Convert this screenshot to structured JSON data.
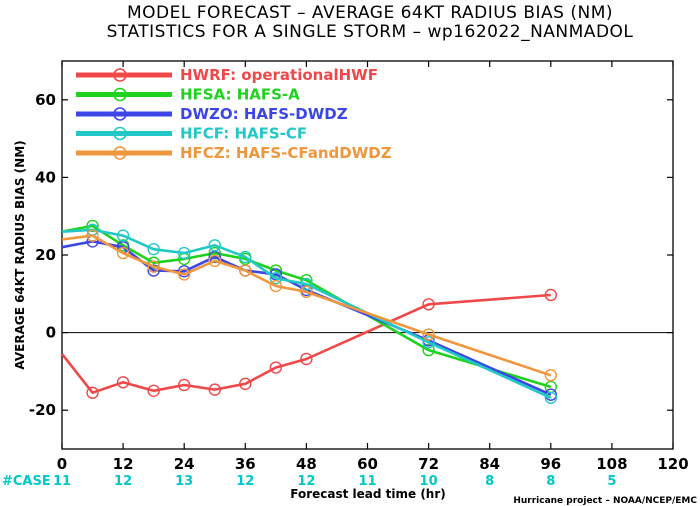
{
  "title": "MODEL FORECAST – AVERAGE 64KT RADIUS BIAS (NM)",
  "subtitle": "STATISTICS FOR A SINGLE STORM – wp162022_NANMADOL",
  "credit": "Hurricane project – NOAA/NCEP/EMC",
  "case_label": "#CASE",
  "case_color": "#00c8c8",
  "chart_data": {
    "type": "line",
    "title": "MODEL FORECAST – AVERAGE 64KT RADIUS BIAS (NM)",
    "subtitle": "STATISTICS FOR A SINGLE STORM – wp162022_NANMADOL",
    "xlabel": "Forecast lead time (hr)",
    "ylabel": "AVERAGE 64KT RADIUS BIAS (NM)",
    "xlim": [
      0,
      120
    ],
    "ylim": [
      -30,
      70
    ],
    "xticks": [
      0,
      12,
      24,
      36,
      48,
      60,
      72,
      84,
      96,
      108,
      120
    ],
    "yticks": [
      -20,
      0,
      20,
      40,
      60
    ],
    "zero_line": true,
    "grid": false,
    "legend_position": "top-left",
    "case_counts": [
      {
        "x": 0,
        "n": 11
      },
      {
        "x": 12,
        "n": 12
      },
      {
        "x": 24,
        "n": 13
      },
      {
        "x": 36,
        "n": 12
      },
      {
        "x": 48,
        "n": 12
      },
      {
        "x": 60,
        "n": 11
      },
      {
        "x": 72,
        "n": 10
      },
      {
        "x": 84,
        "n": 8
      },
      {
        "x": 96,
        "n": 8
      },
      {
        "x": 108,
        "n": 5
      }
    ],
    "series": [
      {
        "name": "HWRF: operationalHWF",
        "color": "#f04848",
        "x": [
          0,
          6,
          12,
          18,
          24,
          30,
          36,
          42,
          48,
          72,
          96
        ],
        "y": [
          -5.5,
          -15.5,
          -12.8,
          -15,
          -13.5,
          -14.7,
          -13.2,
          -9,
          -6.8,
          7.3,
          9.7
        ],
        "markers": [
          6,
          12,
          18,
          24,
          30,
          36,
          42,
          48,
          72,
          96
        ]
      },
      {
        "name": "HFSA: HAFS-A",
        "color": "#1ed21e",
        "x": [
          0,
          6,
          12,
          18,
          24,
          30,
          36,
          42,
          48,
          72,
          96
        ],
        "y": [
          26,
          27.5,
          22.5,
          18,
          19,
          20.5,
          19,
          16,
          13.5,
          -4.5,
          -14
        ],
        "markers": [
          6,
          12,
          18,
          24,
          30,
          36,
          42,
          48,
          72,
          96
        ]
      },
      {
        "name": "DWZO: HAFS-DWDZ",
        "color": "#3c46e6",
        "x": [
          0,
          6,
          12,
          18,
          24,
          30,
          36,
          42,
          48,
          72,
          96
        ],
        "y": [
          22,
          23.5,
          22,
          16,
          15.8,
          19.5,
          16,
          15,
          11,
          -2,
          -16
        ],
        "markers": [
          6,
          12,
          18,
          24,
          30,
          36,
          42,
          48,
          72,
          96
        ]
      },
      {
        "name": "HFCF: HAFS-CF",
        "color": "#22c8c8",
        "x": [
          0,
          6,
          12,
          18,
          24,
          30,
          36,
          42,
          48,
          72,
          96
        ],
        "y": [
          26,
          26.5,
          25,
          21.5,
          20.5,
          22.5,
          19.5,
          14,
          12.5,
          -2.5,
          -16.8
        ],
        "markers": [
          6,
          12,
          18,
          24,
          30,
          36,
          42,
          48,
          72,
          96
        ]
      },
      {
        "name": "HFCZ: HAFS-CFandDWDZ",
        "color": "#f0963c",
        "x": [
          0,
          6,
          12,
          18,
          24,
          30,
          36,
          42,
          48,
          72,
          96
        ],
        "y": [
          24,
          25,
          20.5,
          17,
          15,
          18.5,
          16,
          12,
          10.5,
          -0.5,
          -11
        ],
        "markers": [
          6,
          12,
          18,
          24,
          30,
          36,
          42,
          48,
          72,
          96
        ]
      }
    ]
  }
}
